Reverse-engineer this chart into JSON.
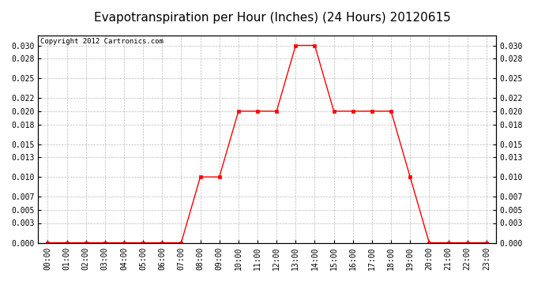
{
  "title": "Evapotranspiration per Hour (Inches) (24 Hours) 20120615",
  "copyright": "Copyright 2012 Cartronics.com",
  "x_labels": [
    "00:00",
    "01:00",
    "02:00",
    "03:00",
    "04:00",
    "05:00",
    "06:00",
    "07:00",
    "08:00",
    "09:00",
    "10:00",
    "11:00",
    "12:00",
    "13:00",
    "14:00",
    "15:00",
    "16:00",
    "17:00",
    "18:00",
    "19:00",
    "20:00",
    "21:00",
    "22:00",
    "23:00"
  ],
  "y_values": [
    0.0,
    0.0,
    0.0,
    0.0,
    0.0,
    0.0,
    0.0,
    0.0,
    0.01,
    0.01,
    0.02,
    0.02,
    0.02,
    0.03,
    0.03,
    0.02,
    0.02,
    0.02,
    0.02,
    0.01,
    0.0,
    0.0,
    0.0,
    0.0
  ],
  "yticks": [
    0.0,
    0.003,
    0.005,
    0.007,
    0.01,
    0.013,
    0.015,
    0.018,
    0.02,
    0.022,
    0.025,
    0.028,
    0.03
  ],
  "line_color": "red",
  "marker": "s",
  "marker_size": 2.5,
  "background_color": "#ffffff",
  "plot_bg_color": "#ffffff",
  "grid_color": "#bbbbbb",
  "title_fontsize": 11,
  "tick_fontsize": 7,
  "copyright_fontsize": 6.5,
  "ylim": [
    0.0,
    0.0315
  ]
}
